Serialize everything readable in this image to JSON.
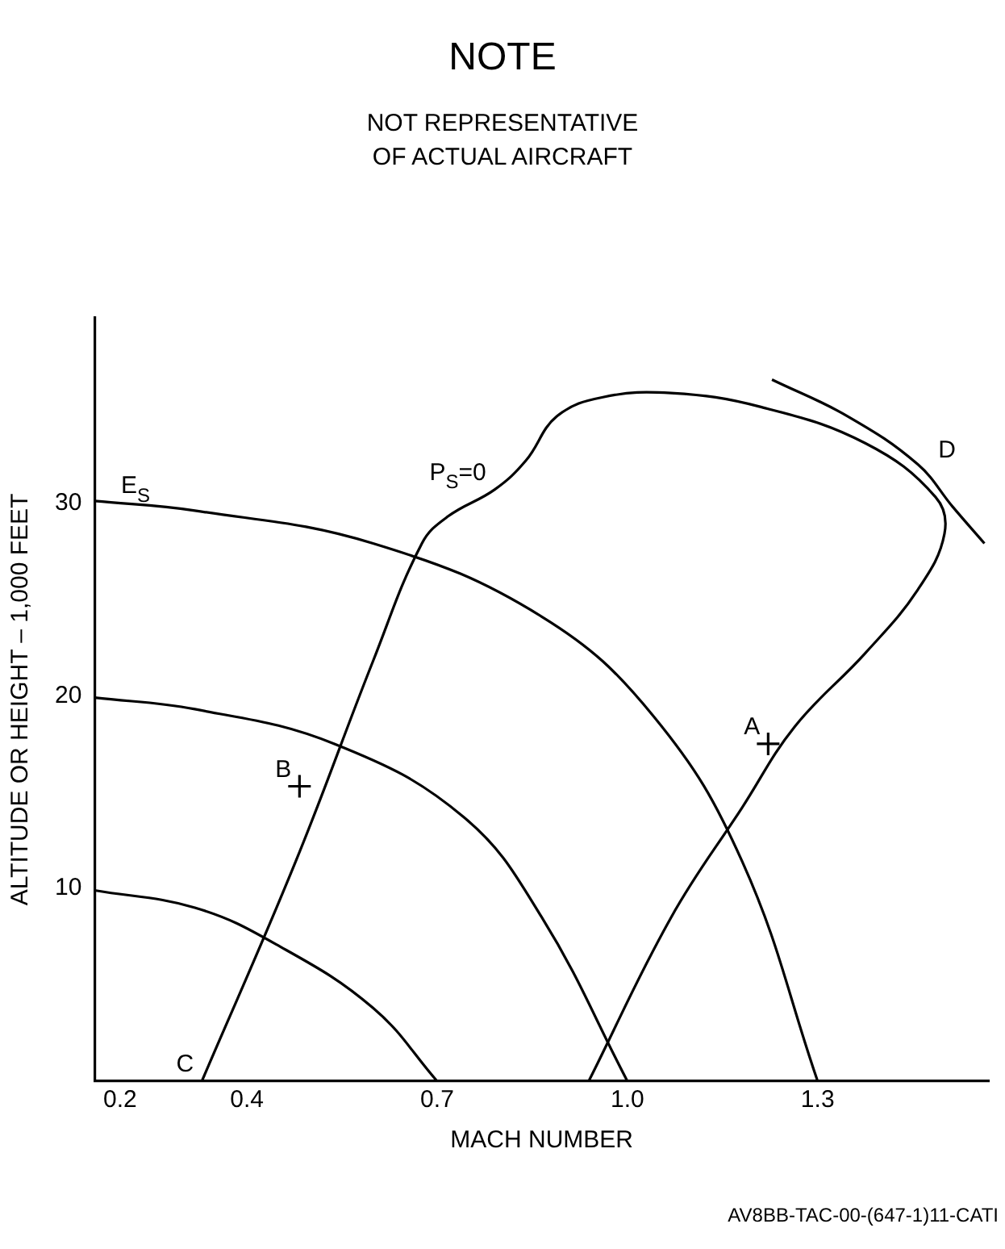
{
  "chart_data": {
    "type": "line",
    "title": "NOTE",
    "subtitle": "NOT REPRESENTATIVE\nOF ACTUAL AIRCRAFT",
    "xlabel": "MACH NUMBER",
    "ylabel": "ALTITUDE OR HEIGHT – 1,000 FEET",
    "xlim": [
      0.16,
      1.57
    ],
    "xticks": [
      0.2,
      0.4,
      0.7,
      {
        "value": 1,
        "label": "1.0"
      },
      1.3
    ],
    "ylim": [
      0,
      39.6
    ],
    "yticks": [
      10,
      20,
      30
    ],
    "grid": false,
    "series": [
      {
        "color": "#000000",
        "x": [
          0.16,
          0.318,
          0.599,
          0.865,
          1.042,
          1.181,
          1.3
        ],
        "values": [
          30.1,
          29.6,
          27.9,
          24.1,
          18.9,
          11.4,
          0
        ]
      },
      {
        "color": "#000000",
        "x": [
          0.16,
          0.318,
          0.538,
          0.742,
          0.865,
          1.0
        ],
        "values": [
          19.9,
          19.3,
          17.5,
          13.7,
          8.5,
          0
        ]
      },
      {
        "color": "#000000",
        "x": [
          0.16,
          0.318,
          0.446,
          0.599,
          0.7
        ],
        "values": [
          9.9,
          9.0,
          7.1,
          3.8,
          0
        ]
      },
      {
        "color": "#000000",
        "x": [
          0.329,
          0.477,
          0.599,
          0.676,
          0.717,
          0.791,
          0.84,
          0.889,
          0.963,
          1.069,
          1.208,
          1.375,
          1.486,
          1.5,
          1.458,
          1.375,
          1.264,
          1.181,
          1.069,
          0.939
        ],
        "values": [
          0,
          11.4,
          21.8,
          27.9,
          29.3,
          30.7,
          32.2,
          34.5,
          35.5,
          35.7,
          35.0,
          33.1,
          30.3,
          28.4,
          25.5,
          22.2,
          18.4,
          14.2,
          8.5,
          0
        ]
      },
      {
        "color": "#000000",
        "x": [
          1.228,
          1.347,
          1.458,
          1.513,
          1.563
        ],
        "values": [
          36.4,
          34.5,
          32.0,
          29.8,
          27.9
        ]
      },
      {
        "type": "scatter",
        "marker": "cross",
        "color": "#000000",
        "x": [
          1.222,
          0.483
        ],
        "values": [
          17.5,
          15.3
        ]
      }
    ],
    "annotations": [
      {
        "text": "A",
        "x": 1.222,
        "y": 17.5
      },
      {
        "text": "B",
        "x": 0.483,
        "y": 15.3
      },
      {
        "text": "C",
        "x": 0.329,
        "y": 0
      },
      {
        "text": "D",
        "x": 1.47,
        "y": 31.2
      },
      {
        "text": "E$_{S}$",
        "x": 0.26,
        "y": 30
      },
      {
        "text": "P$_{S}$=0",
        "x": 0.79,
        "y": 30.7
      },
      "AV8BB-TAC-00-(647-1)11-CATI"
    ]
  }
}
